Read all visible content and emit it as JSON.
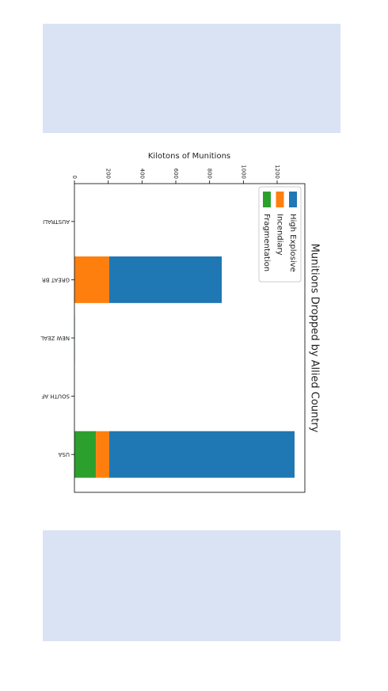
{
  "chart_data": {
    "type": "bar",
    "stacked": true,
    "title": "Munitions Dropped by Allied Country",
    "ylabel": "Kilotons of Munitions",
    "categories": [
      "AUSTRALI",
      "GREAT BR",
      "NEW ZEAL",
      "SOUTH AF",
      "USA"
    ],
    "series": [
      {
        "name": "High Explosive",
        "color": "#1f77b4",
        "values": [
          0,
          666,
          2,
          0,
          1097
        ]
      },
      {
        "name": "Incendiary",
        "color": "#ff7f0e",
        "values": [
          0,
          206,
          0,
          0,
          79
        ]
      },
      {
        "name": "Fragmentation",
        "color": "#2ca02c",
        "values": [
          0,
          0,
          0,
          0,
          127
        ]
      }
    ],
    "ylim": [
      0,
      1364
    ],
    "yticks": [
      0,
      200,
      400,
      600,
      800,
      1000,
      1200
    ],
    "legend": "upper left",
    "grid": false
  }
}
